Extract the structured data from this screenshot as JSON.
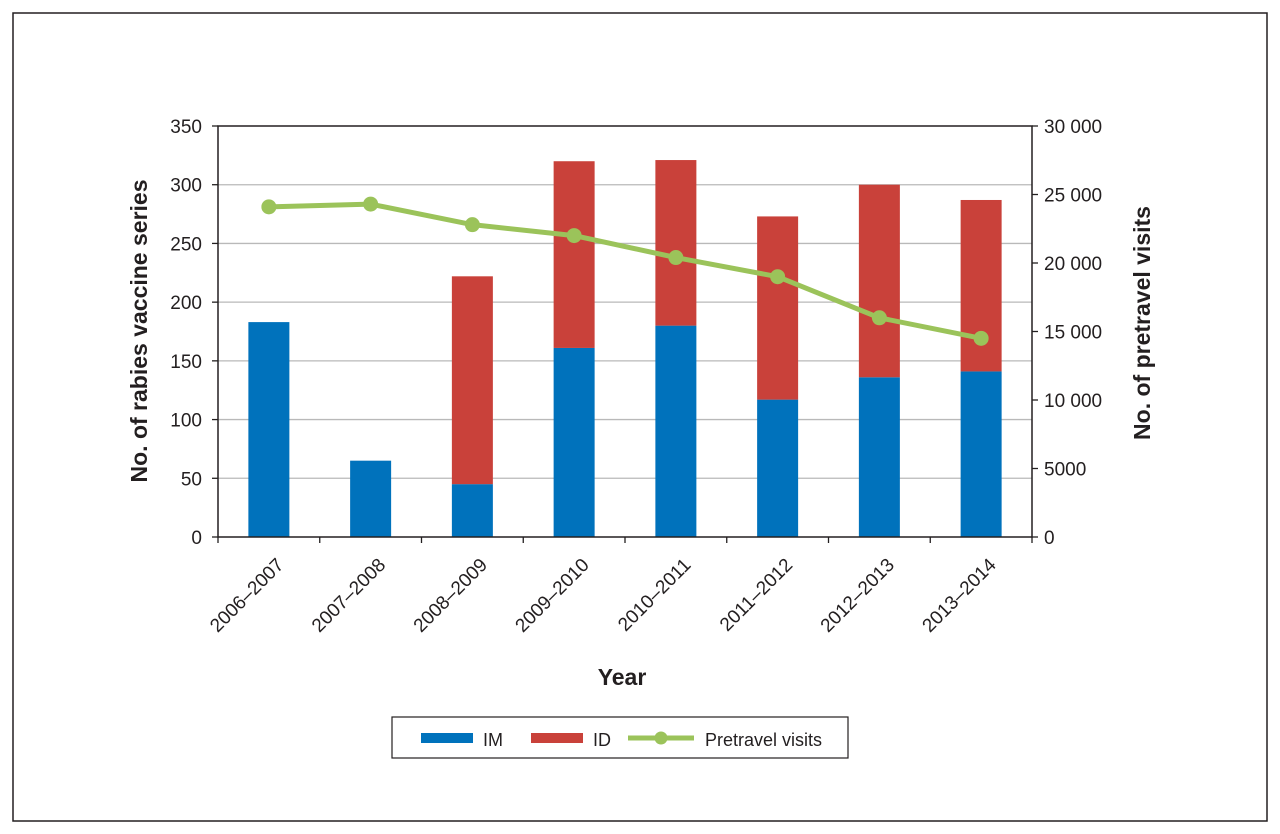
{
  "chart_data": {
    "type": "bar",
    "stacked": true,
    "categories": [
      "2006–2007",
      "2007–2008",
      "2008–2009",
      "2009–2010",
      "2010–2011",
      "2011–2012",
      "2012–2013",
      "2013–2014"
    ],
    "series": [
      {
        "name": "IM",
        "type": "bar",
        "axis": "left",
        "color": "#0072bc",
        "values": [
          183,
          65,
          45,
          161,
          180,
          117,
          136,
          141
        ]
      },
      {
        "name": "ID",
        "type": "bar",
        "axis": "left",
        "color": "#c9413a",
        "values": [
          0,
          0,
          177,
          159,
          141,
          156,
          164,
          146
        ]
      },
      {
        "name": "Pretravel visits",
        "type": "line",
        "axis": "right",
        "color": "#9bc35a",
        "values": [
          24100,
          24300,
          22800,
          22000,
          20400,
          19000,
          16000,
          14500
        ]
      }
    ],
    "xlabel": "Year",
    "ylabel": "No. of rabies vaccine series",
    "y2label": "No. of pretravel visits",
    "ylim": [
      0,
      350
    ],
    "y2lim": [
      0,
      30000
    ],
    "yticks": [
      "0",
      "50",
      "100",
      "150",
      "200",
      "250",
      "300",
      "350"
    ],
    "y2ticks": [
      "0",
      "5000",
      "10 000",
      "15 000",
      "20 000",
      "25 000",
      "30 000"
    ],
    "grid": true,
    "legend_position": "bottom"
  }
}
